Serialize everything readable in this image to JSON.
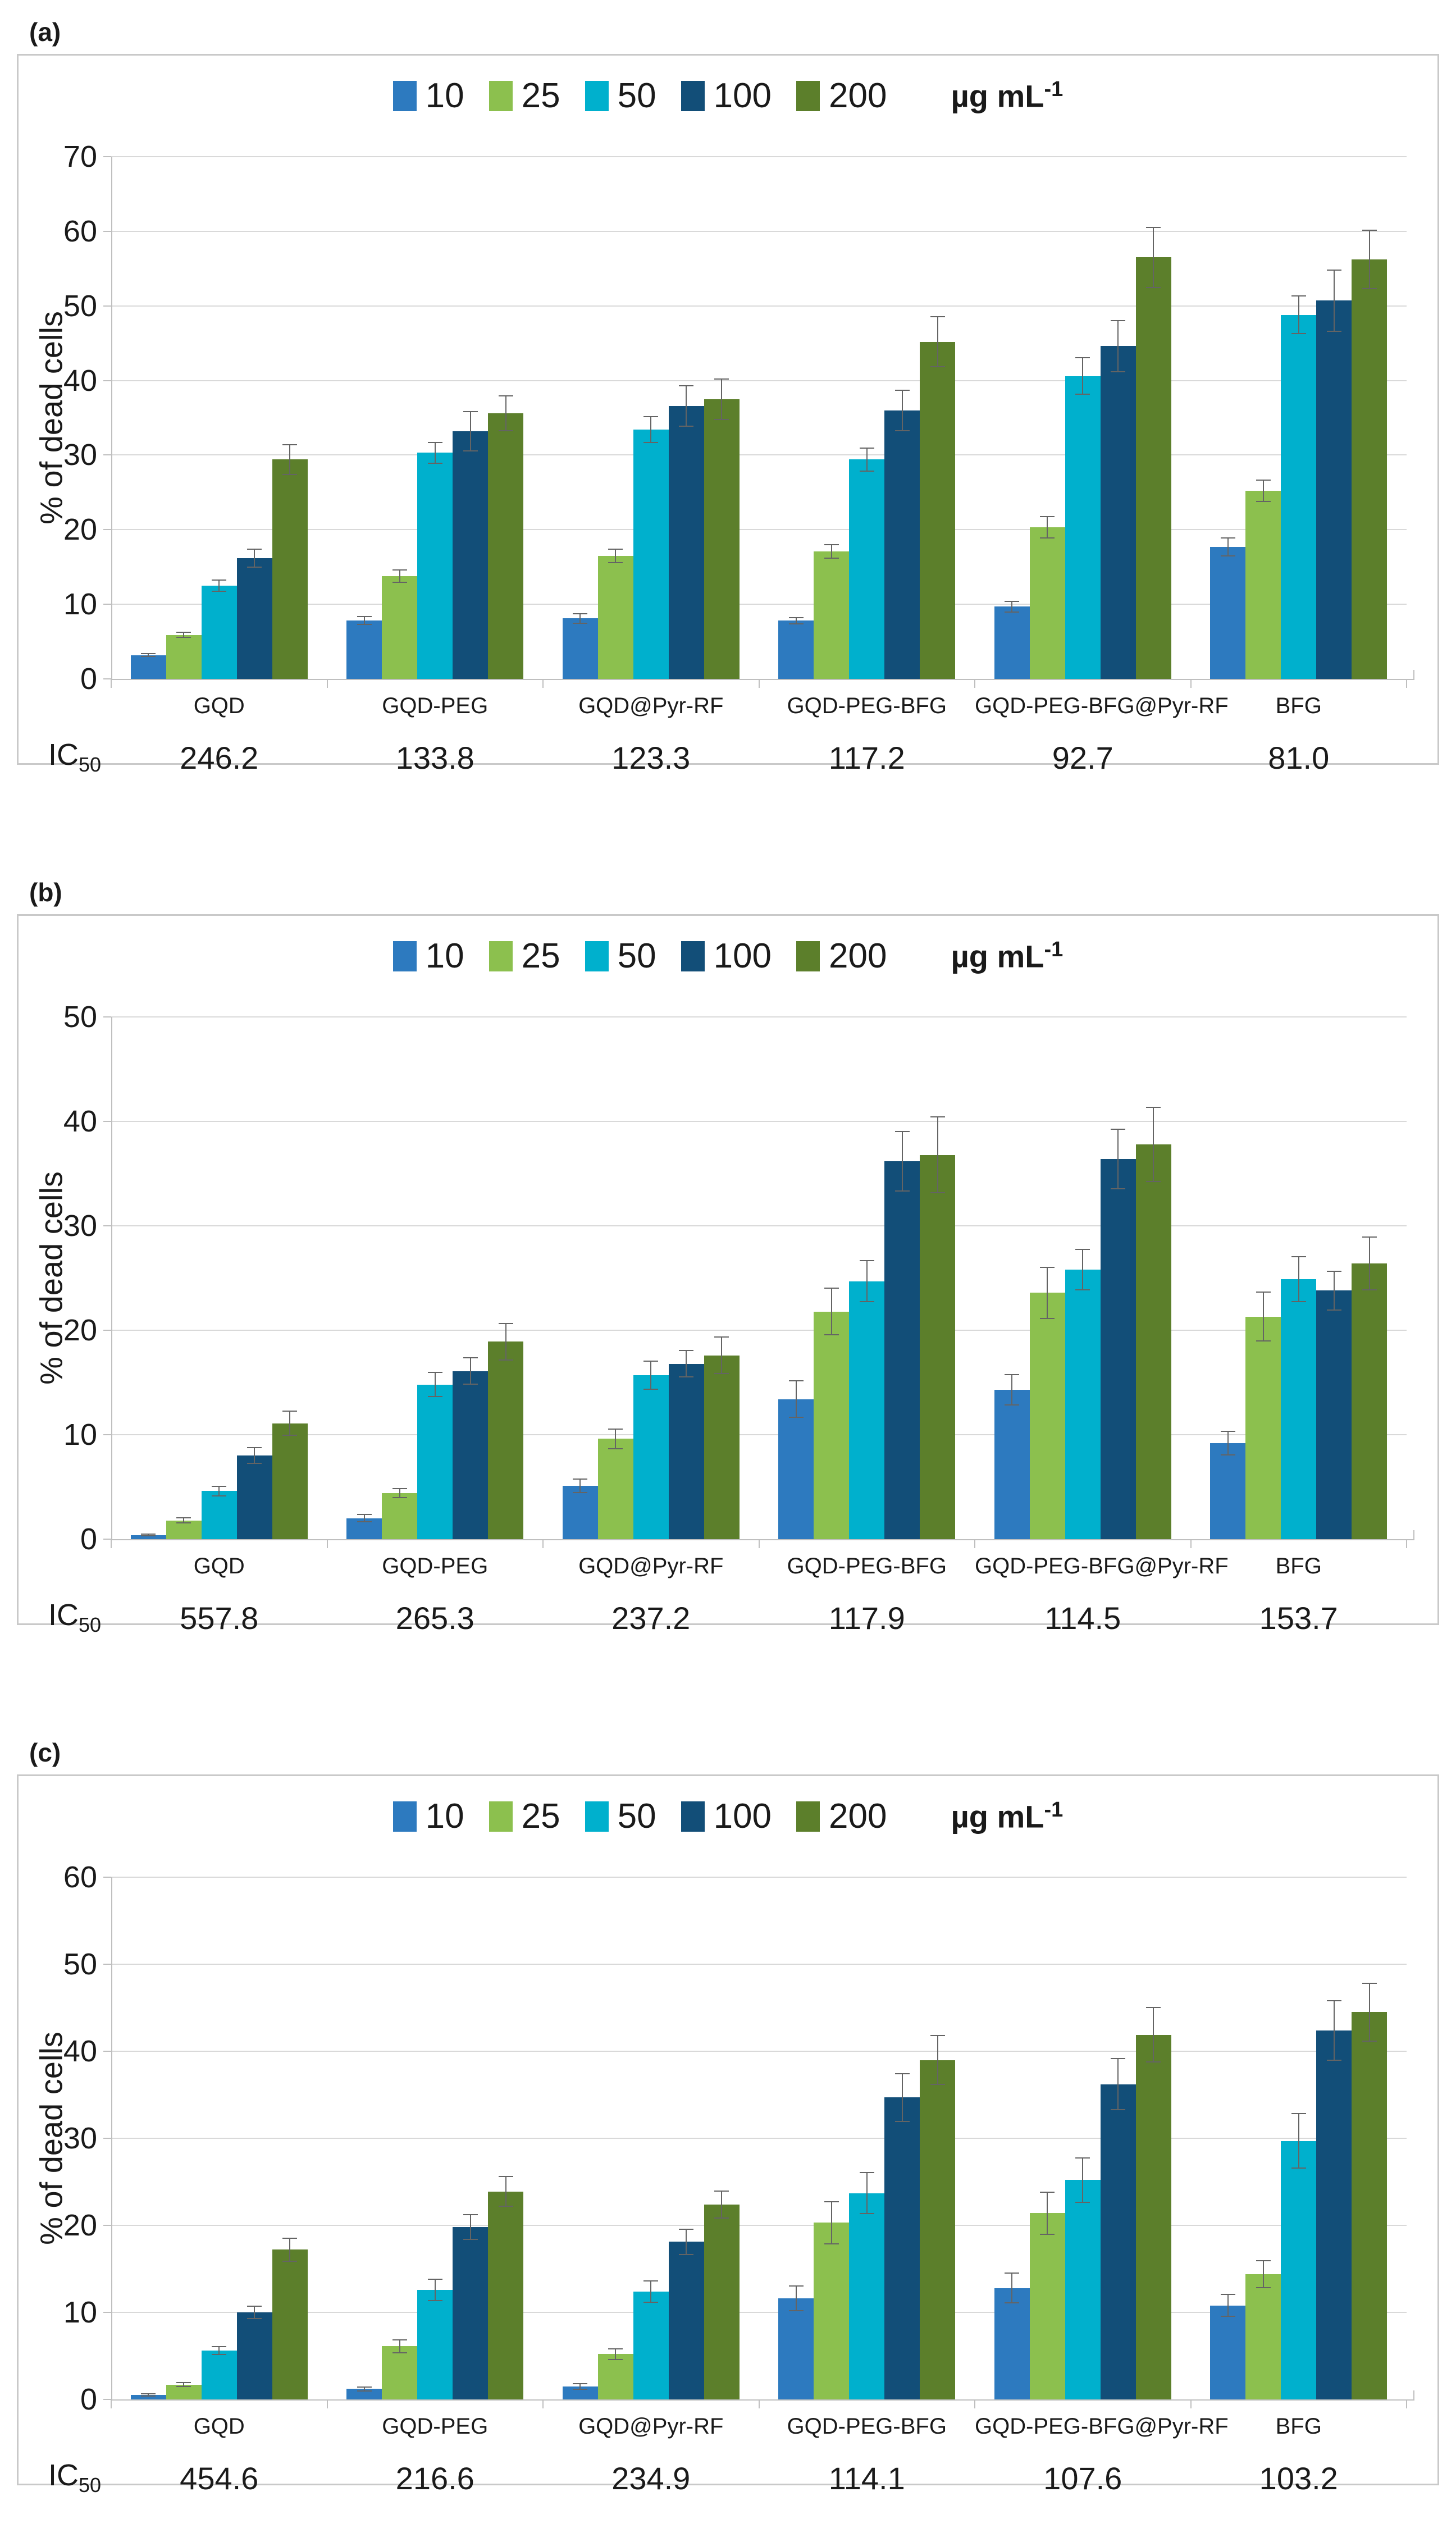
{
  "figure": {
    "unit_label": "µg mL",
    "unit_exponent": "-1",
    "ylabel": "% of dead cells",
    "ic50_label": "IC",
    "ic50_sub": "50",
    "colors": {
      "grid": "#d9d9d9",
      "axis": "#bfbfbf",
      "error": "#646464",
      "panel_border": "#c9c9c9",
      "series_10": "#2d7abf",
      "series_25": "#8cc04e",
      "series_50": "#00b0cd",
      "series_100": "#124e78",
      "series_200": "#5c7f2b"
    }
  },
  "chart_data": [
    {
      "panel": "(a)",
      "type": "bar",
      "title": "",
      "xlabel": "",
      "ylabel": "% of dead cells",
      "ylim": [
        0,
        70
      ],
      "ytick_step": 10,
      "grid": true,
      "legend_position": "top-center",
      "categories": [
        "GQD",
        "GQD-PEG",
        "GQD@Pyr-RF",
        "GQD-PEG-BFG",
        "GQD-PEG-BFG@Pyr-RF",
        "BFG"
      ],
      "series": [
        {
          "name": "10",
          "color": "#2d7abf",
          "values": [
            3.2,
            7.8,
            8.1,
            7.8,
            9.7,
            17.7
          ],
          "errors": [
            0.3,
            0.6,
            0.7,
            0.5,
            0.8,
            1.3
          ]
        },
        {
          "name": "25",
          "color": "#8cc04e",
          "values": [
            5.9,
            13.8,
            16.5,
            17.1,
            20.3,
            25.2
          ],
          "errors": [
            0.4,
            0.9,
            1.0,
            1.0,
            1.5,
            1.5
          ]
        },
        {
          "name": "50",
          "color": "#00b0cd",
          "values": [
            12.5,
            30.3,
            33.4,
            29.4,
            40.6,
            48.8
          ],
          "errors": [
            0.8,
            1.5,
            1.8,
            1.6,
            2.5,
            2.6
          ]
        },
        {
          "name": "100",
          "color": "#124e78",
          "values": [
            16.2,
            33.2,
            36.6,
            36.0,
            44.6,
            50.7
          ],
          "errors": [
            1.3,
            2.7,
            2.8,
            2.8,
            3.5,
            4.2
          ]
        },
        {
          "name": "200",
          "color": "#5c7f2b",
          "values": [
            29.4,
            35.6,
            37.5,
            45.2,
            56.5,
            56.2
          ],
          "errors": [
            2.1,
            2.4,
            2.8,
            3.4,
            4.1,
            4.0
          ]
        }
      ],
      "ic50_values": [
        "246.2",
        "133.8",
        "123.3",
        "117.2",
        "92.7",
        "81.0"
      ]
    },
    {
      "panel": "(b)",
      "type": "bar",
      "title": "",
      "xlabel": "",
      "ylabel": "% of dead cells",
      "ylim": [
        0,
        50
      ],
      "ytick_step": 10,
      "grid": true,
      "legend_position": "top-center",
      "categories": [
        "GQD",
        "GQD-PEG",
        "GQD@Pyr-RF",
        "GQD-PEG-BFG",
        "GQD-PEG-BFG@Pyr-RF",
        "BFG"
      ],
      "series": [
        {
          "name": "10",
          "color": "#2d7abf",
          "values": [
            0.4,
            2.0,
            5.1,
            13.4,
            14.3,
            9.2
          ],
          "errors": [
            0.15,
            0.4,
            0.7,
            1.8,
            1.5,
            1.2
          ]
        },
        {
          "name": "25",
          "color": "#8cc04e",
          "values": [
            1.8,
            4.4,
            9.6,
            21.8,
            23.6,
            21.3
          ],
          "errors": [
            0.3,
            0.5,
            1.0,
            2.3,
            2.5,
            2.4
          ]
        },
        {
          "name": "50",
          "color": "#00b0cd",
          "values": [
            4.6,
            14.8,
            15.7,
            24.7,
            25.8,
            24.9
          ],
          "errors": [
            0.5,
            1.2,
            1.4,
            2.0,
            2.0,
            2.2
          ]
        },
        {
          "name": "100",
          "color": "#124e78",
          "values": [
            8.0,
            16.1,
            16.8,
            36.2,
            36.4,
            23.8
          ],
          "errors": [
            0.8,
            1.3,
            1.3,
            2.9,
            2.9,
            1.9
          ]
        },
        {
          "name": "200",
          "color": "#5c7f2b",
          "values": [
            11.1,
            18.9,
            17.6,
            36.8,
            37.8,
            26.4
          ],
          "errors": [
            1.2,
            1.8,
            1.8,
            3.7,
            3.6,
            2.6
          ]
        }
      ],
      "ic50_values": [
        "557.8",
        "265.3",
        "237.2",
        "117.9",
        "114.5",
        "153.7"
      ]
    },
    {
      "panel": "(c)",
      "type": "bar",
      "title": "",
      "xlabel": "",
      "ylabel": "% of dead cells",
      "ylim": [
        0,
        60
      ],
      "ytick_step": 10,
      "grid": true,
      "legend_position": "top-center",
      "categories": [
        "GQD",
        "GQD-PEG",
        "GQD@Pyr-RF",
        "GQD-PEG-BFG",
        "GQD-PEG-BFG@Pyr-RF",
        "BFG"
      ],
      "series": [
        {
          "name": "10",
          "color": "#2d7abf",
          "values": [
            0.5,
            1.2,
            1.5,
            11.6,
            12.8,
            10.8
          ],
          "errors": [
            0.2,
            0.3,
            0.4,
            1.5,
            1.8,
            1.3
          ]
        },
        {
          "name": "25",
          "color": "#8cc04e",
          "values": [
            1.7,
            6.1,
            5.2,
            20.3,
            21.4,
            14.4
          ],
          "errors": [
            0.3,
            0.8,
            0.7,
            2.5,
            2.5,
            1.6
          ]
        },
        {
          "name": "50",
          "color": "#00b0cd",
          "values": [
            5.6,
            12.6,
            12.4,
            23.7,
            25.2,
            29.7
          ],
          "errors": [
            0.5,
            1.3,
            1.3,
            2.4,
            2.6,
            3.2
          ]
        },
        {
          "name": "100",
          "color": "#124e78",
          "values": [
            10.0,
            19.8,
            18.1,
            34.7,
            36.2,
            42.4
          ],
          "errors": [
            0.8,
            1.5,
            1.5,
            2.8,
            3.0,
            3.5
          ]
        },
        {
          "name": "200",
          "color": "#5c7f2b",
          "values": [
            17.2,
            23.9,
            22.4,
            39.0,
            41.9,
            44.5
          ],
          "errors": [
            1.4,
            1.8,
            1.6,
            2.9,
            3.2,
            3.4
          ]
        }
      ],
      "ic50_values": [
        "454.6",
        "216.6",
        "234.9",
        "114.1",
        "107.6",
        "103.2"
      ]
    }
  ]
}
